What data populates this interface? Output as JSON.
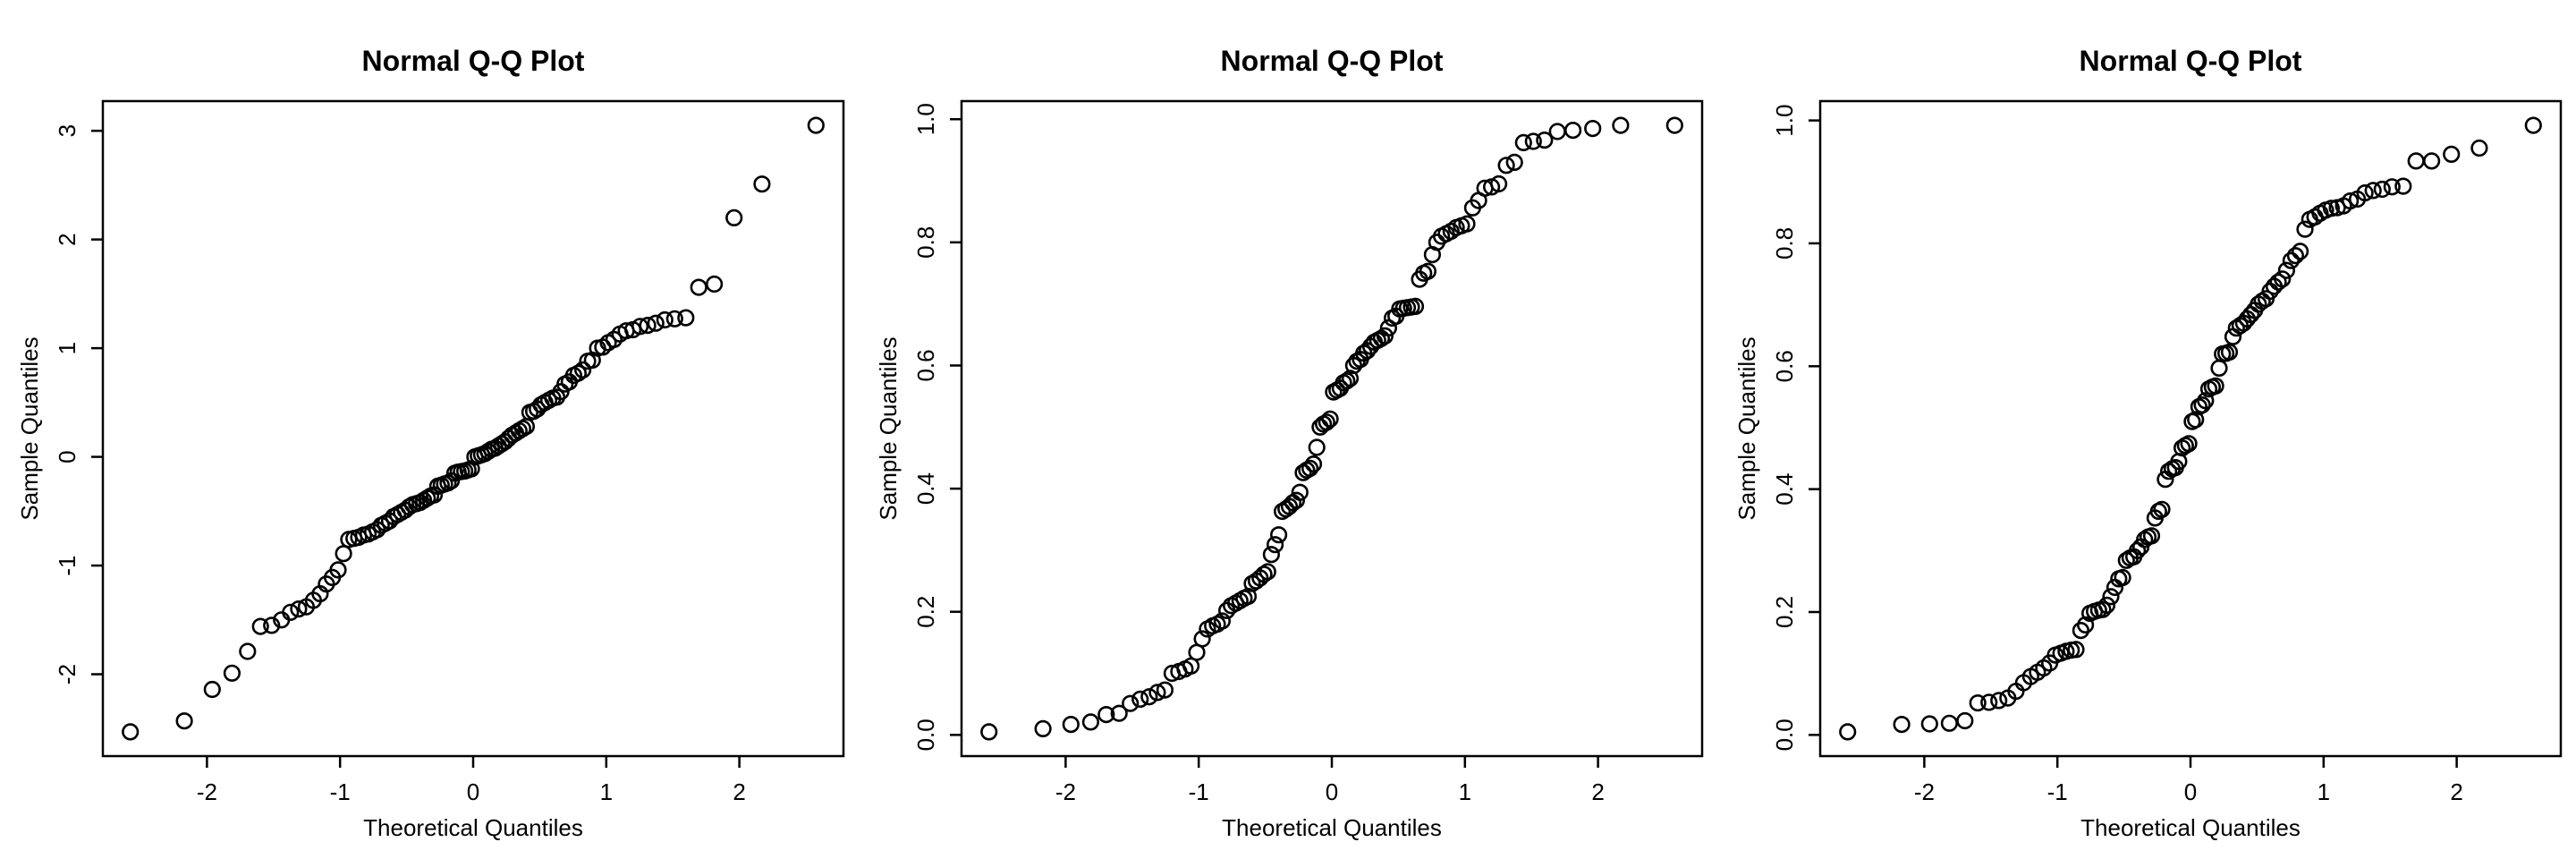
{
  "window": {
    "background": "#ffffff",
    "foreground": "#000000"
  },
  "chart_data": [
    {
      "type": "scatter",
      "title": "Normal Q-Q Plot",
      "xlabel": "Theoretical Quantiles",
      "ylabel": "Sample Quantiles",
      "marker": "open-circle",
      "grid": false,
      "legend": false,
      "xlim": [
        -2.78,
        2.78
      ],
      "ylim": [
        -2.75,
        3.27
      ],
      "xticks": [
        -2,
        -1,
        0,
        1,
        2
      ],
      "xtick_labels": [
        "-2",
        "-1",
        "0",
        "1",
        "2"
      ],
      "yticks": [
        -2,
        -1,
        0,
        1,
        2,
        3
      ],
      "ytick_labels": [
        "-2",
        "-1",
        "0",
        "1",
        "2",
        "3"
      ],
      "x": [
        -2.576,
        -2.17,
        -1.96,
        -1.812,
        -1.695,
        -1.598,
        -1.514,
        -1.44,
        -1.372,
        -1.311,
        -1.254,
        -1.2,
        -1.15,
        -1.103,
        -1.058,
        -1.015,
        -0.974,
        -0.935,
        -0.896,
        -0.86,
        -0.824,
        -0.789,
        -0.755,
        -0.722,
        -0.69,
        -0.659,
        -0.628,
        -0.598,
        -0.568,
        -0.539,
        -0.51,
        -0.482,
        -0.454,
        -0.426,
        -0.399,
        -0.372,
        -0.345,
        -0.319,
        -0.292,
        -0.266,
        -0.24,
        -0.215,
        -0.189,
        -0.164,
        -0.138,
        -0.113,
        -0.088,
        -0.063,
        -0.038,
        -0.013,
        0.013,
        0.038,
        0.063,
        0.088,
        0.113,
        0.138,
        0.164,
        0.189,
        0.215,
        0.24,
        0.266,
        0.292,
        0.319,
        0.345,
        0.372,
        0.399,
        0.426,
        0.454,
        0.482,
        0.51,
        0.539,
        0.568,
        0.598,
        0.628,
        0.659,
        0.69,
        0.722,
        0.755,
        0.789,
        0.824,
        0.86,
        0.896,
        0.935,
        0.974,
        1.015,
        1.058,
        1.103,
        1.15,
        1.2,
        1.254,
        1.311,
        1.372,
        1.44,
        1.514,
        1.598,
        1.695,
        1.812,
        1.96,
        2.17,
        2.576
      ],
      "y": [
        -2.53,
        -2.43,
        -2.14,
        -1.99,
        -1.79,
        -1.56,
        -1.55,
        -1.5,
        -1.43,
        -1.4,
        -1.38,
        -1.32,
        -1.26,
        -1.17,
        -1.11,
        -1.04,
        -0.89,
        -0.76,
        -0.75,
        -0.74,
        -0.72,
        -0.71,
        -0.69,
        -0.67,
        -0.63,
        -0.61,
        -0.59,
        -0.55,
        -0.53,
        -0.51,
        -0.49,
        -0.46,
        -0.44,
        -0.43,
        -0.42,
        -0.4,
        -0.38,
        -0.36,
        -0.35,
        -0.27,
        -0.26,
        -0.25,
        -0.24,
        -0.22,
        -0.15,
        -0.14,
        -0.135,
        -0.13,
        -0.12,
        -0.11,
        0.0,
        0.01,
        0.02,
        0.03,
        0.05,
        0.07,
        0.08,
        0.1,
        0.12,
        0.14,
        0.17,
        0.2,
        0.22,
        0.24,
        0.26,
        0.28,
        0.41,
        0.42,
        0.44,
        0.48,
        0.5,
        0.52,
        0.54,
        0.55,
        0.6,
        0.67,
        0.69,
        0.75,
        0.77,
        0.8,
        0.88,
        0.89,
        1.0,
        1.01,
        1.05,
        1.08,
        1.13,
        1.16,
        1.17,
        1.2,
        1.21,
        1.23,
        1.26,
        1.27,
        1.28,
        1.56,
        1.59,
        2.2,
        2.51,
        3.05
      ]
    },
    {
      "type": "scatter",
      "title": "Normal Q-Q Plot",
      "xlabel": "Theoretical Quantiles",
      "ylabel": "Sample Quantiles",
      "marker": "open-circle",
      "grid": false,
      "legend": false,
      "xlim": [
        -2.78,
        2.78
      ],
      "ylim": [
        -0.03,
        1.03
      ],
      "xticks": [
        -2,
        -1,
        0,
        1,
        2
      ],
      "xtick_labels": [
        "-2",
        "-1",
        "0",
        "1",
        "2"
      ],
      "yticks": [
        0.0,
        0.2,
        0.4,
        0.6,
        0.8,
        1.0
      ],
      "ytick_labels": [
        "0.0",
        "0.2",
        "0.4",
        "0.6",
        "0.8",
        "1.0"
      ],
      "x": [
        -2.576,
        -2.17,
        -1.96,
        -1.812,
        -1.695,
        -1.598,
        -1.514,
        -1.44,
        -1.372,
        -1.311,
        -1.254,
        -1.2,
        -1.15,
        -1.103,
        -1.058,
        -1.015,
        -0.974,
        -0.935,
        -0.896,
        -0.86,
        -0.824,
        -0.789,
        -0.755,
        -0.722,
        -0.69,
        -0.659,
        -0.628,
        -0.598,
        -0.568,
        -0.539,
        -0.51,
        -0.482,
        -0.454,
        -0.426,
        -0.399,
        -0.372,
        -0.345,
        -0.319,
        -0.292,
        -0.266,
        -0.24,
        -0.215,
        -0.189,
        -0.164,
        -0.138,
        -0.113,
        -0.088,
        -0.063,
        -0.038,
        -0.013,
        0.013,
        0.038,
        0.063,
        0.088,
        0.113,
        0.138,
        0.164,
        0.189,
        0.215,
        0.24,
        0.266,
        0.292,
        0.319,
        0.345,
        0.372,
        0.399,
        0.426,
        0.454,
        0.482,
        0.51,
        0.539,
        0.568,
        0.598,
        0.628,
        0.659,
        0.69,
        0.722,
        0.755,
        0.789,
        0.824,
        0.86,
        0.896,
        0.935,
        0.974,
        1.015,
        1.058,
        1.103,
        1.15,
        1.2,
        1.254,
        1.311,
        1.372,
        1.44,
        1.514,
        1.598,
        1.695,
        1.812,
        1.96,
        2.17,
        2.576
      ],
      "y": [
        0.005,
        0.01,
        0.017,
        0.021,
        0.033,
        0.035,
        0.051,
        0.058,
        0.062,
        0.069,
        0.073,
        0.1,
        0.103,
        0.107,
        0.112,
        0.134,
        0.156,
        0.172,
        0.177,
        0.18,
        0.185,
        0.202,
        0.21,
        0.214,
        0.218,
        0.222,
        0.225,
        0.246,
        0.25,
        0.255,
        0.261,
        0.265,
        0.293,
        0.309,
        0.325,
        0.363,
        0.367,
        0.371,
        0.377,
        0.381,
        0.394,
        0.426,
        0.43,
        0.433,
        0.44,
        0.467,
        0.5,
        0.505,
        0.508,
        0.513,
        0.557,
        0.56,
        0.563,
        0.572,
        0.575,
        0.579,
        0.6,
        0.607,
        0.61,
        0.62,
        0.624,
        0.631,
        0.638,
        0.641,
        0.644,
        0.648,
        0.661,
        0.677,
        0.68,
        0.692,
        0.693,
        0.694,
        0.695,
        0.696,
        0.74,
        0.75,
        0.753,
        0.78,
        0.8,
        0.81,
        0.814,
        0.818,
        0.824,
        0.827,
        0.83,
        0.856,
        0.868,
        0.888,
        0.89,
        0.895,
        0.925,
        0.93,
        0.962,
        0.964,
        0.966,
        0.98,
        0.982,
        0.985,
        0.99,
        0.99
      ]
    },
    {
      "type": "scatter",
      "title": "Normal Q-Q Plot",
      "xlabel": "Theoretical Quantiles",
      "ylabel": "Sample Quantiles",
      "marker": "open-circle",
      "grid": false,
      "legend": false,
      "xlim": [
        -2.78,
        2.78
      ],
      "ylim": [
        -0.03,
        1.03
      ],
      "xticks": [
        -2,
        -1,
        0,
        1,
        2
      ],
      "xtick_labels": [
        "-2",
        "-1",
        "0",
        "1",
        "2"
      ],
      "yticks": [
        0.0,
        0.2,
        0.4,
        0.6,
        0.8,
        1.0
      ],
      "ytick_labels": [
        "0.0",
        "0.2",
        "0.4",
        "0.6",
        "0.8",
        "1.0"
      ],
      "x": [
        -2.576,
        -2.17,
        -1.96,
        -1.812,
        -1.695,
        -1.598,
        -1.514,
        -1.44,
        -1.372,
        -1.311,
        -1.254,
        -1.2,
        -1.15,
        -1.103,
        -1.058,
        -1.015,
        -0.974,
        -0.935,
        -0.896,
        -0.86,
        -0.824,
        -0.789,
        -0.755,
        -0.722,
        -0.69,
        -0.659,
        -0.628,
        -0.598,
        -0.568,
        -0.539,
        -0.51,
        -0.482,
        -0.454,
        -0.426,
        -0.399,
        -0.372,
        -0.345,
        -0.319,
        -0.292,
        -0.266,
        -0.24,
        -0.215,
        -0.189,
        -0.164,
        -0.138,
        -0.113,
        -0.088,
        -0.063,
        -0.038,
        -0.013,
        0.013,
        0.038,
        0.063,
        0.088,
        0.113,
        0.138,
        0.164,
        0.189,
        0.215,
        0.24,
        0.266,
        0.292,
        0.319,
        0.345,
        0.372,
        0.399,
        0.426,
        0.454,
        0.482,
        0.51,
        0.539,
        0.568,
        0.598,
        0.628,
        0.659,
        0.69,
        0.722,
        0.755,
        0.789,
        0.824,
        0.86,
        0.896,
        0.935,
        0.974,
        1.015,
        1.058,
        1.103,
        1.15,
        1.2,
        1.254,
        1.311,
        1.372,
        1.44,
        1.514,
        1.598,
        1.695,
        1.812,
        1.96,
        2.17,
        2.576
      ],
      "y": [
        0.005,
        0.017,
        0.018,
        0.019,
        0.023,
        0.052,
        0.053,
        0.056,
        0.06,
        0.071,
        0.085,
        0.095,
        0.102,
        0.109,
        0.117,
        0.13,
        0.133,
        0.136,
        0.138,
        0.139,
        0.17,
        0.179,
        0.198,
        0.201,
        0.203,
        0.204,
        0.211,
        0.225,
        0.24,
        0.254,
        0.256,
        0.284,
        0.288,
        0.29,
        0.3,
        0.306,
        0.318,
        0.322,
        0.324,
        0.353,
        0.364,
        0.367,
        0.416,
        0.429,
        0.433,
        0.435,
        0.445,
        0.467,
        0.471,
        0.474,
        0.51,
        0.513,
        0.534,
        0.537,
        0.544,
        0.563,
        0.566,
        0.568,
        0.597,
        0.62,
        0.621,
        0.623,
        0.648,
        0.662,
        0.666,
        0.67,
        0.677,
        0.684,
        0.691,
        0.701,
        0.706,
        0.71,
        0.722,
        0.73,
        0.737,
        0.742,
        0.756,
        0.772,
        0.78,
        0.787,
        0.823,
        0.839,
        0.843,
        0.849,
        0.854,
        0.857,
        0.858,
        0.861,
        0.869,
        0.872,
        0.882,
        0.886,
        0.888,
        0.892,
        0.893,
        0.934,
        0.934,
        0.945,
        0.955,
        0.992
      ]
    }
  ]
}
